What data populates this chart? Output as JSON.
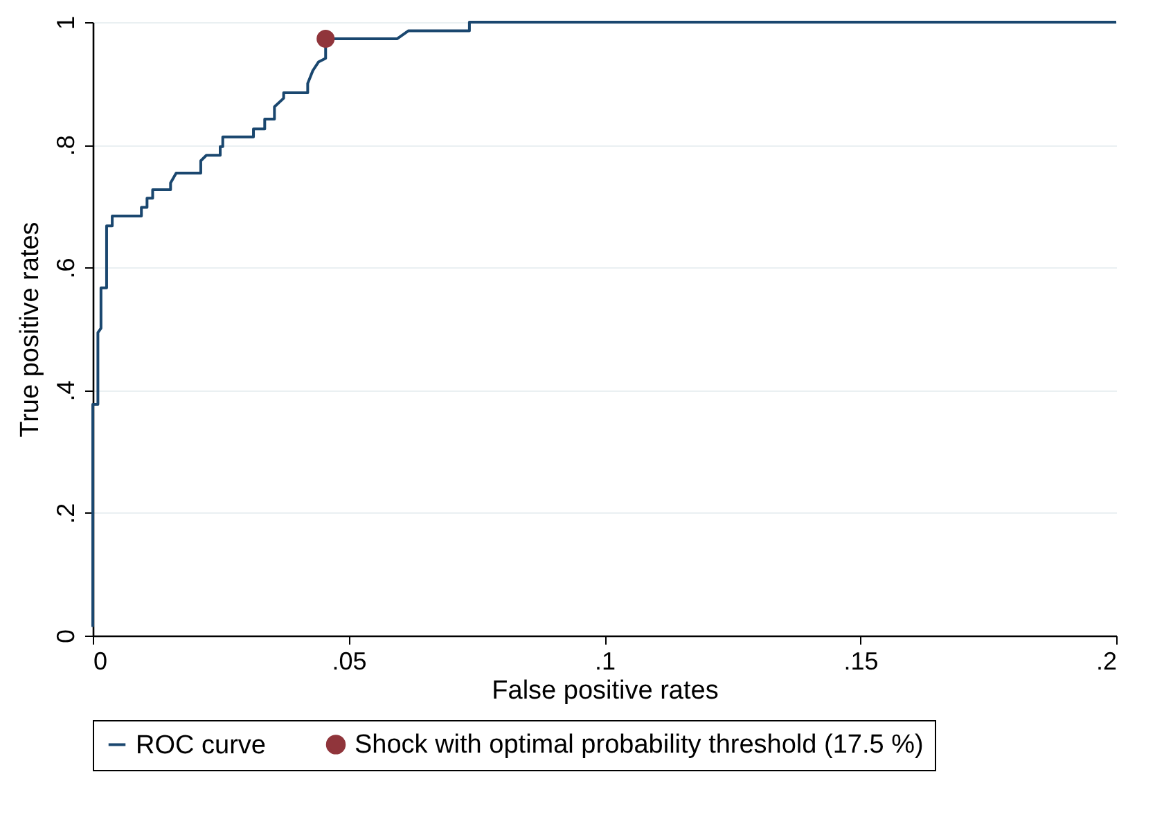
{
  "chart_data": {
    "type": "line",
    "xlabel": "False positive rates",
    "ylabel": "True positive rates",
    "xlim": [
      0,
      0.2
    ],
    "ylim": [
      0,
      1
    ],
    "xticks": [
      0,
      {
        "value": 0.05,
        "label": ".05"
      },
      {
        "value": 0.1,
        "label": ".1"
      },
      {
        "value": 0.15,
        "label": ".15"
      },
      {
        "value": 0.2,
        "label": ".2"
      }
    ],
    "yticks": [
      0,
      {
        "value": 0.2,
        "label": ".2"
      },
      {
        "value": 0.4,
        "label": ".4"
      },
      {
        "value": 0.6,
        "label": ".6"
      },
      {
        "value": 0.8,
        "label": ".8"
      },
      1
    ],
    "grid": "y",
    "legend": "bottom",
    "series": [
      {
        "name": "ROC curve",
        "color": "#1a476f",
        "x": [
          0,
          0,
          0.001,
          0.001,
          0.0016,
          0.0016,
          0.0027,
          0.0027,
          0.0038,
          0.0038,
          0.0095,
          0.0095,
          0.0106,
          0.0106,
          0.0117,
          0.0117,
          0.0152,
          0.0152,
          0.0163,
          0.0211,
          0.0211,
          0.0222,
          0.0249,
          0.0249,
          0.0254,
          0.0254,
          0.0314,
          0.0314,
          0.0336,
          0.0336,
          0.0355,
          0.0355,
          0.0373,
          0.0373,
          0.042,
          0.042,
          0.043,
          0.0441,
          0.0455,
          0.0455,
          0.0595,
          0.0617,
          0.0736,
          0.0736,
          0.2
        ],
        "values": [
          0.014,
          0.377,
          0.377,
          0.494,
          0.501,
          0.567,
          0.567,
          0.668,
          0.668,
          0.684,
          0.684,
          0.698,
          0.698,
          0.713,
          0.713,
          0.727,
          0.727,
          0.738,
          0.754,
          0.754,
          0.774,
          0.783,
          0.783,
          0.797,
          0.797,
          0.813,
          0.813,
          0.826,
          0.826,
          0.842,
          0.842,
          0.862,
          0.876,
          0.885,
          0.885,
          0.9,
          0.921,
          0.935,
          0.941,
          0.973,
          0.973,
          0.986,
          0.986,
          1,
          1
        ]
      },
      {
        "name": "Shock with optimal probability threshold (17.5 %)",
        "color": "#90353b",
        "type": "scatter",
        "marker": "circle",
        "x": [
          0.0455
        ],
        "values": [
          0.973
        ]
      }
    ]
  }
}
